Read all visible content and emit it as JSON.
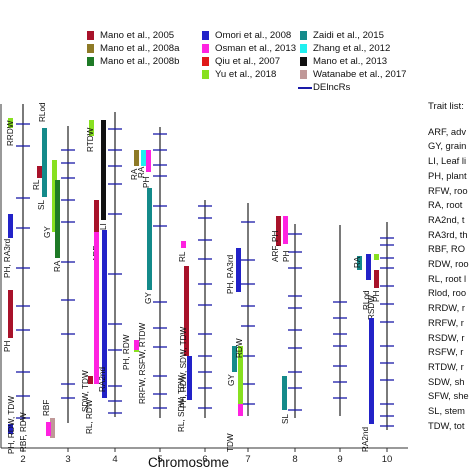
{
  "colors": {
    "Mano et al., 2005": "#a8122a",
    "Mano et al., 2008a": "#8e7a26",
    "Mano et al., 2008b": "#1e7a26",
    "Omori et al., 2008": "#2222c8",
    "Osman et al., 2013": "#ff22e0",
    "Qiu et al., 2007": "#e01818",
    "Yu et al., 2018": "#88e020",
    "Zaidi et al., 2015": "#148a8a",
    "Zhang et al., 2012": "#20f0f0",
    "Mano et al., 2013": "#111111",
    "Watanabe et al., 2017": "#c09898",
    "DElncRs": "#1a1aa8",
    "chromosome": "#222222"
  },
  "legend": [
    {
      "label": "Mano et al., 2005",
      "key": "Mano et al., 2005",
      "col": 0,
      "row": 0
    },
    {
      "label": "Mano et al., 2008a",
      "key": "Mano et al., 2008a",
      "col": 0,
      "row": 1
    },
    {
      "label": "Mano et al., 2008b",
      "key": "Mano et al., 2008b",
      "col": 0,
      "row": 2
    },
    {
      "label": "Omori et al., 2008",
      "key": "Omori et al., 2008",
      "col": 1,
      "row": 0
    },
    {
      "label": "Osman et al., 2013",
      "key": "Osman et al., 2013",
      "col": 1,
      "row": 1
    },
    {
      "label": "Qiu et al., 2007",
      "key": "Qiu et al., 2007",
      "col": 1,
      "row": 2
    },
    {
      "label": "Yu et al., 2018",
      "key": "Yu et al., 2018",
      "col": 1,
      "row": 3
    },
    {
      "label": "Zaidi et al., 2015",
      "key": "Zaidi et al., 2015",
      "col": 2,
      "row": 0
    },
    {
      "label": "Zhang et al., 2012",
      "key": "Zhang et al., 2012",
      "col": 2,
      "row": 1
    },
    {
      "label": "Mano et al., 2013",
      "key": "Mano et al., 2013",
      "col": 2,
      "row": 2
    },
    {
      "label": "Watanabe et al., 2017",
      "key": "Watanabe et al., 2017",
      "col": 2,
      "row": 3
    },
    {
      "label": "DElncRs",
      "key": "DElncRs",
      "col": 2,
      "row": 4,
      "line": true
    }
  ],
  "trait_list": {
    "title": "Trait list:",
    "items": [
      "ARF, adv",
      "GY, grain",
      "LI, Leaf li",
      "PH, plant",
      "RFW, roo",
      "RA, root",
      "RA2nd, t",
      "RA3rd, th",
      "RBF, RO",
      "RDW, roo",
      "RL, root l",
      "Rlod, roo",
      "RRDW, r",
      "RRFW, r",
      "RSDW, r",
      "RSFW, r",
      "RTDW, r",
      "SDW, sh",
      "SFW, she",
      "SL, stem",
      "TDW, tot"
    ]
  },
  "chart_data": {
    "type": "chromosome map",
    "xlabel": "Chromosome",
    "chromosomes": [
      "2",
      "3",
      "4",
      "5",
      "6",
      "7",
      "8",
      "9",
      "10"
    ],
    "qtls": [
      {
        "chr": "2",
        "trait": "RRDW",
        "study": "Yu et al., 2018"
      },
      {
        "chr": "2",
        "trait": "PH, RA3rd",
        "study": "Omori et al., 2008"
      },
      {
        "chr": "2",
        "trait": "PH",
        "study": "Mano et al., 2005"
      },
      {
        "chr": "2",
        "trait": "PH, RDW, TDW",
        "study": "Omori et al., 2008"
      },
      {
        "chr": "3",
        "trait": "RLod",
        "study": "Zaidi et al., 2015"
      },
      {
        "chr": "3",
        "trait": "SL",
        "study": "Zaidi et al., 2015"
      },
      {
        "chr": "3",
        "trait": "RL",
        "study": "Mano et al., 2005"
      },
      {
        "chr": "3",
        "trait": "GY",
        "study": "Yu et al., 2018"
      },
      {
        "chr": "3",
        "trait": "RA",
        "study": "Mano et al., 2008b"
      },
      {
        "chr": "3",
        "trait": "RBF",
        "study": "Watanabe et al., 2017"
      },
      {
        "chr": "3",
        "trait": "RBF, RDW",
        "study": "Osman et al., 2013"
      },
      {
        "chr": "3",
        "trait": "SDW, TDW",
        "study": "Mano et al., 2005"
      },
      {
        "chr": "4",
        "trait": "RTDW",
        "study": "Yu et al., 2018"
      },
      {
        "chr": "4",
        "trait": "LI",
        "study": "Mano et al., 2013"
      },
      {
        "chr": "4",
        "trait": "ARF",
        "study": "Mano et al., 2005"
      },
      {
        "chr": "4",
        "trait": "RL, RDW",
        "study": "Osman et al., 2013"
      },
      {
        "chr": "4",
        "trait": "RA2nd",
        "study": "Omori et al., 2008"
      },
      {
        "chr": "5",
        "trait": "RA",
        "study": "Mano et al., 2008a"
      },
      {
        "chr": "5",
        "trait": "RA",
        "study": "Zhang et al., 2012"
      },
      {
        "chr": "5",
        "trait": "PH",
        "study": "Osman et al., 2013"
      },
      {
        "chr": "5",
        "trait": "GY",
        "study": "Zaidi et al., 2015"
      },
      {
        "chr": "5",
        "trait": "PH, RDW",
        "study": "Osman et al., 2013"
      },
      {
        "chr": "5",
        "trait": "RRFW, RSFW, RTDW",
        "study": "Yu et al., 2018"
      },
      {
        "chr": "6",
        "trait": "RL",
        "study": "Osman et al., 2013"
      },
      {
        "chr": "6",
        "trait": "PH, RDW, SDW, TDW",
        "study": "Mano et al., 2005"
      },
      {
        "chr": "6",
        "trait": "RL, SDW, TDW",
        "study": "Omori et al., 2008"
      },
      {
        "chr": "7",
        "trait": "PH, RA3rd",
        "study": "Omori et al., 2008"
      },
      {
        "chr": "7",
        "trait": "GY",
        "study": "Zaidi et al., 2015"
      },
      {
        "chr": "7",
        "trait": "RDW",
        "study": "Yu et al., 2018"
      },
      {
        "chr": "7",
        "trait": "TDW",
        "study": "Osman et al., 2013"
      },
      {
        "chr": "8",
        "trait": "ARF, PH",
        "study": "Mano et al., 2005"
      },
      {
        "chr": "8",
        "trait": "PH",
        "study": "Osman et al., 2013"
      },
      {
        "chr": "8",
        "trait": "SL",
        "study": "Zaidi et al., 2015"
      },
      {
        "chr": "10",
        "trait": "RA",
        "study": "Zaidi et al., 2015"
      },
      {
        "chr": "10",
        "trait": "RLod",
        "study": "Omori et al., 2008"
      },
      {
        "chr": "10",
        "trait": "RSDW",
        "study": "Yu et al., 2018"
      },
      {
        "chr": "10",
        "trait": "PH",
        "study": "Mano et al., 2005"
      },
      {
        "chr": "10",
        "trait": "RA2nd",
        "study": "Omori et al., 2008"
      }
    ]
  }
}
